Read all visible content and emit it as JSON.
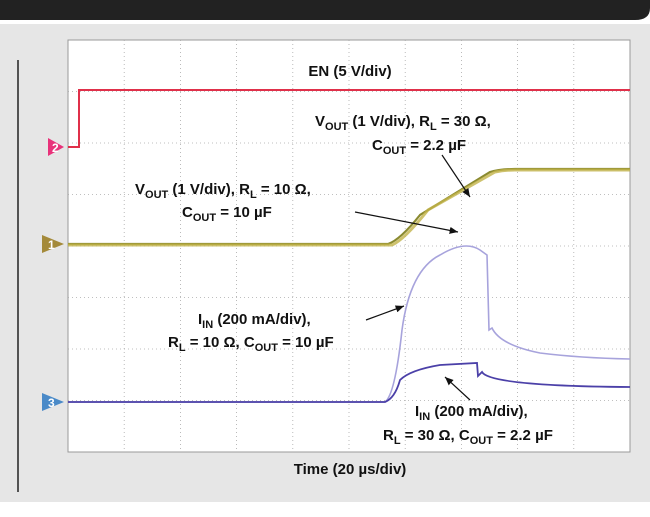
{
  "channels": [
    "2",
    "1",
    "3"
  ],
  "en_label": "EN (5 V/div)",
  "vout30": {
    "line1": [
      "V",
      "OUT",
      " (1 V/div), R",
      "L",
      " = 30 Ω,"
    ],
    "line2": [
      "C",
      "OUT",
      " = 2.2 µF"
    ]
  },
  "vout10": {
    "line1": [
      "V",
      "OUT",
      " (1 V/div), R",
      "L",
      " = 10 Ω,"
    ],
    "line2": [
      "C",
      "OUT",
      " = 10 µF"
    ]
  },
  "iin10": {
    "line1": [
      "I",
      "IN",
      " (200 mA/div),"
    ],
    "line2": [
      "R",
      "L",
      " = 10 Ω, C",
      "OUT",
      " = 10 µF"
    ]
  },
  "iin30": {
    "line1": [
      "I",
      "IN",
      " (200 mA/div),"
    ],
    "line2": [
      "R",
      "L",
      " = 30 Ω, C",
      "OUT",
      " = 2.2 µF"
    ]
  },
  "time_label": "Time (20 µs/div)"
}
